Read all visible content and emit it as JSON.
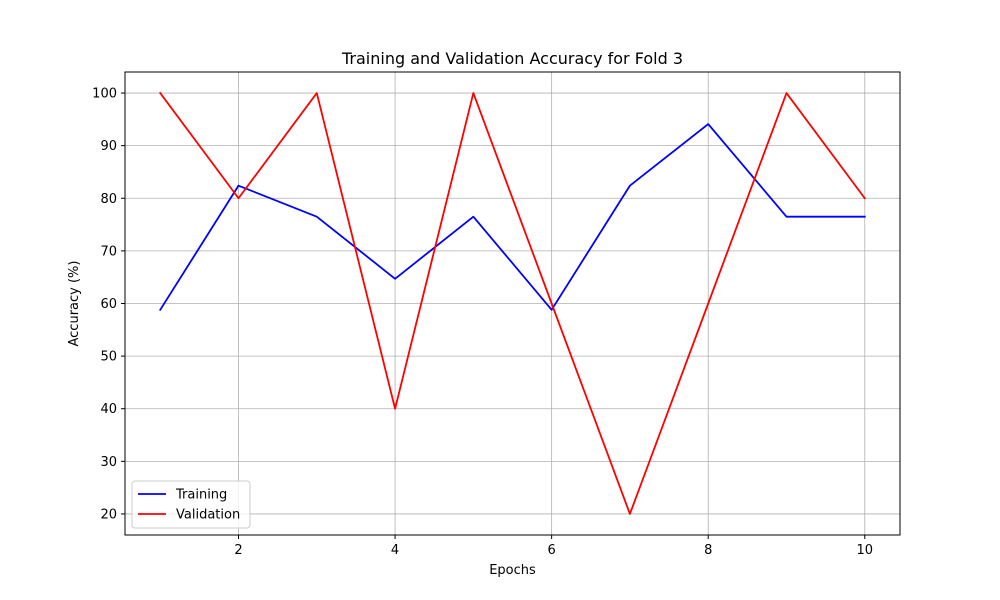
{
  "chart_data": {
    "type": "line",
    "title": "Training and Validation Accuracy for Fold 3",
    "xlabel": "Epochs",
    "ylabel": "Accuracy (%)",
    "x": [
      1,
      2,
      3,
      4,
      5,
      6,
      7,
      8,
      9,
      10
    ],
    "xlim": [
      0.55,
      10.45
    ],
    "ylim": [
      16,
      104
    ],
    "xticks": [
      2,
      4,
      6,
      8,
      10
    ],
    "yticks": [
      20,
      30,
      40,
      50,
      60,
      70,
      80,
      90,
      100
    ],
    "grid": true,
    "legend_position": "lower-left",
    "series": [
      {
        "name": "Training",
        "color": "#0000ff",
        "values": [
          58.8,
          82.4,
          76.5,
          64.7,
          76.5,
          58.8,
          82.4,
          94.1,
          76.5,
          76.5
        ]
      },
      {
        "name": "Validation",
        "color": "#ff0000",
        "values": [
          100,
          80,
          100,
          40,
          100,
          60,
          20,
          60,
          100,
          80
        ]
      }
    ]
  }
}
